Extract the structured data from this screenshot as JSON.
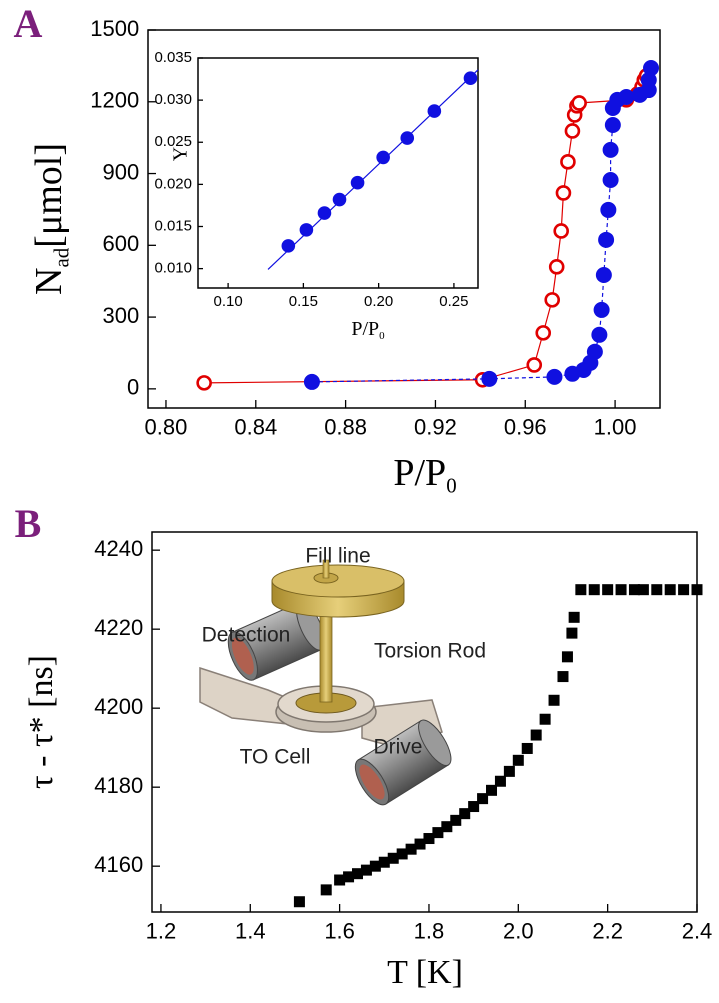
{
  "chart_data": [
    {
      "type": "line",
      "panel_label": "A",
      "xlabel": {
        "text": "P/P",
        "sub": "0"
      },
      "ylabel": {
        "text": "N",
        "sub": "ad",
        "after": "[μmol]"
      },
      "xlim": [
        0.792,
        1.02
      ],
      "ylim": [
        -80,
        1500
      ],
      "xticks": [
        {
          "value": 0.8,
          "label": "0.80"
        },
        {
          "value": 0.84,
          "label": "0.84"
        },
        {
          "value": 0.88,
          "label": "0.88"
        },
        {
          "value": 0.92,
          "label": "0.92"
        },
        {
          "value": 0.96,
          "label": "0.96"
        },
        {
          "value": 1.0,
          "label": "1.00"
        }
      ],
      "yticks": [
        0,
        300,
        600,
        900,
        1200,
        1500
      ],
      "series": [
        {
          "color": "#e00000",
          "marker": "open-circle",
          "line_style": "solid",
          "x": [
            0.817,
            0.941,
            0.964,
            0.968,
            0.972,
            0.974,
            0.976,
            0.977,
            0.979,
            0.981,
            0.982,
            0.983,
            0.984,
            1.005,
            1.01,
            1.012,
            1.013,
            1.014
          ],
          "values": [
            25,
            38,
            100,
            234,
            372,
            510,
            660,
            819,
            949,
            1078,
            1145,
            1183,
            1195,
            1208,
            1233,
            1262,
            1291,
            1308
          ]
        },
        {
          "color": "#1010e0",
          "marker": "filled-circle",
          "line_style": "dashed",
          "x": [
            0.865,
            0.944,
            0.973,
            0.981,
            0.986,
            0.989,
            0.991,
            0.993,
            0.994,
            0.995,
            0.996,
            0.997,
            0.998,
            0.998,
            0.999,
            0.999,
            1.001,
            1.005,
            1.011,
            1.015,
            1.015,
            1.016
          ],
          "values": [
            29,
            42,
            50,
            63,
            79,
            109,
            155,
            226,
            330,
            476,
            623,
            748,
            873,
            999,
            1103,
            1174,
            1208,
            1220,
            1229,
            1249,
            1291,
            1341
          ]
        }
      ]
    },
    {
      "type": "line",
      "xlabel": {
        "text": "P/P",
        "sub": "0"
      },
      "ylabel": "Y",
      "xlim": [
        0.08,
        0.266
      ],
      "ylim": [
        0.0077,
        0.035
      ],
      "xticks": [
        {
          "value": 0.1,
          "label": "0.10"
        },
        {
          "value": 0.15,
          "label": "0.15"
        },
        {
          "value": 0.2,
          "label": "0.20"
        },
        {
          "value": 0.25,
          "label": "0.25"
        }
      ],
      "yticks": [
        {
          "value": 0.01,
          "label": "0.010"
        },
        0.015,
        {
          "value": 0.02,
          "label": "0.020"
        },
        0.025,
        {
          "value": 0.03,
          "label": "0.030"
        },
        0.035
      ],
      "series": [
        {
          "color": "#1010e0",
          "marker": "filled-circle",
          "line_style": "none",
          "x": [
            0.14,
            0.152,
            0.164,
            0.174,
            0.186,
            0.203,
            0.219,
            0.237,
            0.261
          ],
          "values": [
            0.0127,
            0.0146,
            0.0166,
            0.0182,
            0.0202,
            0.0232,
            0.0255,
            0.0287,
            0.0326
          ]
        },
        {
          "color": "#1010e0",
          "marker": "none",
          "line_style": "solid",
          "x": [
            0.1265,
            0.266
          ],
          "values": [
            0.0099,
            0.0336
          ]
        }
      ]
    },
    {
      "type": "line",
      "panel_label": "B",
      "xlabel": "T [K]",
      "ylabel": "τ - τ* [ns]",
      "xlim": [
        1.18,
        2.4
      ],
      "ylim": [
        4148.4,
        4244.6
      ],
      "xticks": [
        1.2,
        1.4,
        1.6,
        1.8,
        {
          "value": 2.0,
          "label": "2.0"
        },
        2.2,
        2.4
      ],
      "yticks": [
        4160,
        4180,
        4200,
        4220,
        4240
      ],
      "annotations": [
        "Fill line",
        "Detection",
        "Torsion Rod",
        "TO Cell",
        "Drive"
      ],
      "series": [
        {
          "color": "#000000",
          "marker": "square",
          "line_style": "none",
          "x": [
            1.51,
            1.57,
            1.6,
            1.62,
            1.64,
            1.66,
            1.68,
            1.7,
            1.72,
            1.74,
            1.76,
            1.78,
            1.8,
            1.82,
            1.84,
            1.86,
            1.88,
            1.9,
            1.92,
            1.94,
            1.96,
            1.98,
            2.0,
            2.02,
            2.04,
            2.06,
            2.08,
            2.1,
            2.11,
            2.12,
            2.125,
            2.14,
            2.17,
            2.2,
            2.23,
            2.26,
            2.28,
            2.31,
            2.34,
            2.37,
            2.4
          ],
          "values": [
            4151,
            4154,
            4156.5,
            4157.3,
            4158.1,
            4159.0,
            4160.0,
            4161.0,
            4162.0,
            4163.1,
            4164.3,
            4165.6,
            4167.0,
            4168.5,
            4170.0,
            4171.6,
            4173.3,
            4175.1,
            4177.1,
            4179.2,
            4181.5,
            4184.0,
            4186.8,
            4189.8,
            4193.2,
            4197.2,
            4202.0,
            4208.0,
            4213,
            4219,
            4223,
            4230,
            4230,
            4230,
            4230,
            4230,
            4230,
            4230,
            4230,
            4230,
            4230
          ]
        }
      ]
    }
  ]
}
